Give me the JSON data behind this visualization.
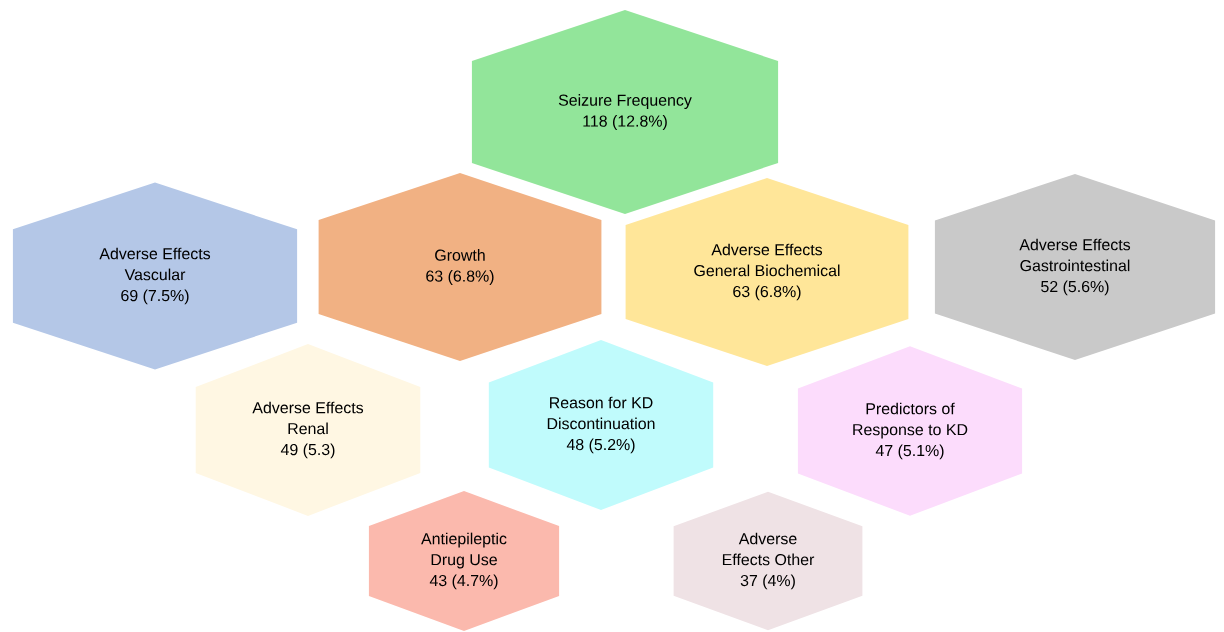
{
  "chart_data": {
    "type": "other",
    "categories": [
      "Seizure Frequency",
      "Adverse Effects Vascular",
      "Growth",
      "Adverse Effects General Biochemical",
      "Adverse Effects Gastrointestinal",
      "Adverse Effects Renal",
      "Reason for KD Discontinuation",
      "Predictors of Response to KD",
      "Antiepileptic Drug Use",
      "Adverse Effects Other"
    ],
    "values": [
      118,
      69,
      63,
      63,
      52,
      49,
      48,
      47,
      43,
      37
    ],
    "value_labels": [
      "118 (12.8%)",
      "69 (7.5%)",
      "63 (6.8%)",
      "63 (6.8%)",
      "52 (5.6%)",
      "49 (5.3)",
      "48 (5.2%)",
      "47 (5.1%)",
      "43 (4.7%)",
      "37 (4%)"
    ],
    "colors": [
      "#92e59a",
      "#b4c7e7",
      "#f1b183",
      "#ffe699",
      "#c9c9c9",
      "#fff7e3",
      "#c0fbfc",
      "#fcdcfc",
      "#fbb9ad",
      "#efe2e5"
    ]
  }
}
